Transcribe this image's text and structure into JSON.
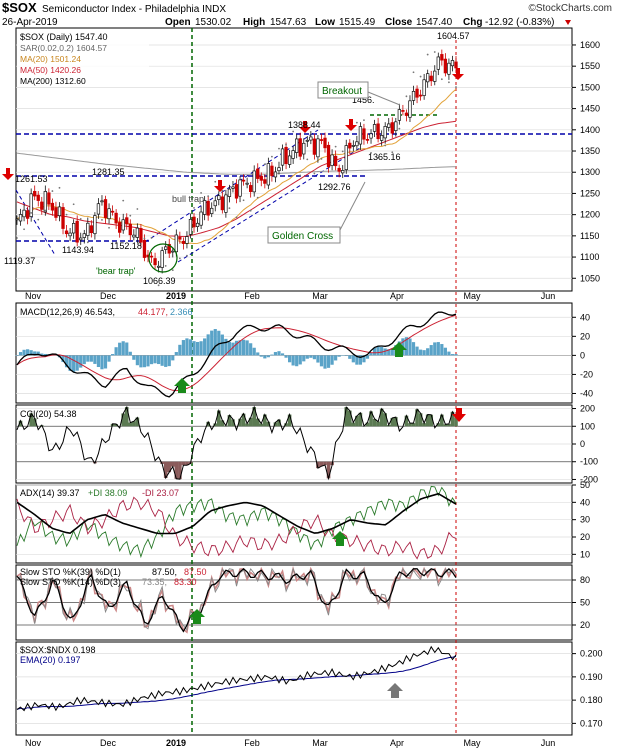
{
  "header": {
    "symbol": "$SOX",
    "name": "Semiconductor Index - Philadelphia INDX",
    "credit": "©StockCharts.com",
    "date": "26-Apr-2019",
    "open_label": "Open",
    "open": "1530.02",
    "high_label": "High",
    "high": "1547.63",
    "low_label": "Low",
    "low": "1515.49",
    "close_label": "Close",
    "close": "1547.40",
    "chg_label": "Chg",
    "chg": "-12.92 (-0.83%)"
  },
  "colors": {
    "up": "#111111",
    "down": "#cc0000",
    "ma20": "#e2a33a",
    "ma50": "#cc2233",
    "ma200": "#000000",
    "sar": "#666666",
    "dashed": "#0000aa",
    "green": "#006600",
    "macd_hist": "#5aa3c8",
    "cci_fill": "#5b7a52",
    "di_plus": "#2a7a2a",
    "di_minus": "#aa2244",
    "ema": "#000088"
  },
  "legend": {
    "price": [
      "$SOX (Daily) 1547.40",
      "SAR(0.02,0.2) 1604.57",
      "MA(20) 1501.24",
      "MA(50) 1420.26",
      "MA(200) 1312.60"
    ],
    "macd": [
      "MACD(12,26,9) 46.543,",
      "44.177,",
      "2.366"
    ],
    "cci": "CCI(20) 54.38",
    "adx": [
      "ADX(14) 39.37",
      "+DI 38.09",
      "-DI 23.07"
    ],
    "sto1": [
      "Slow STO %K(39) %D(1)",
      "87.50,",
      "87.50"
    ],
    "sto2": [
      "Slow STO %K(14) %D(3)",
      "73.35,",
      "83.30"
    ],
    "ratio": [
      "$SOX:$NDX 0.198",
      "EMA(20) 0.197"
    ]
  },
  "annotations": {
    "breakout": "Breakout",
    "bull_trap": "bull trap",
    "bear_trap": "'bear trap'",
    "golden_cross": "Golden Cross",
    "price_labels": [
      "1604.57",
      "1456.",
      "1388.44",
      "1365.16",
      "1292.76",
      "1281.35",
      "1261.53",
      "1119.37",
      "1143.94",
      "1152.18",
      "1066.39"
    ]
  },
  "x_axis": {
    "labels": [
      "Nov",
      "Dec",
      "2019",
      "Feb",
      "Mar",
      "Apr",
      "May",
      "Jun"
    ]
  },
  "chart_data": [
    {
      "type": "line",
      "title": "$SOX Semiconductor Index - Philadelphia INDX (Daily)",
      "ylim": [
        1020,
        1640
      ],
      "yticks": [
        1050,
        1100,
        1150,
        1200,
        1250,
        1300,
        1350,
        1400,
        1450,
        1500,
        1550,
        1600
      ],
      "series": [
        {
          "name": "$SOX (Daily)",
          "x": [
            "Oct 26",
            "Nov 2",
            "Nov 9",
            "Nov 16",
            "Nov 23",
            "Nov 30",
            "Dec 7",
            "Dec 14",
            "Dec 21",
            "Dec 28",
            "Jan 4",
            "Jan 11",
            "Jan 18",
            "Jan 25",
            "Feb 1",
            "Feb 8",
            "Feb 15",
            "Feb 22",
            "Mar 1",
            "Mar 8",
            "Mar 15",
            "Mar 22",
            "Mar 29",
            "Apr 5",
            "Apr 12",
            "Apr 19",
            "Apr 26"
          ],
          "values": [
            1180,
            1240,
            1225,
            1160,
            1148,
            1228,
            1178,
            1160,
            1080,
            1120,
            1150,
            1210,
            1230,
            1265,
            1280,
            1295,
            1340,
            1368,
            1370,
            1300,
            1380,
            1390,
            1400,
            1450,
            1500,
            1560,
            1547
          ]
        },
        {
          "name": "MA(50)",
          "values": [
            1230,
            1215,
            1200,
            1195,
            1185,
            1180,
            1175,
            1170,
            1160,
            1150,
            1148,
            1158,
            1170,
            1190,
            1215,
            1240,
            1265,
            1290,
            1315,
            1330,
            1345,
            1360,
            1375,
            1390,
            1405,
            1415,
            1420
          ]
        },
        {
          "name": "MA(200)",
          "values": [
            1345,
            1340,
            1335,
            1330,
            1325,
            1320,
            1316,
            1312,
            1308,
            1304,
            1300,
            1298,
            1296,
            1295,
            1295,
            1296,
            1298,
            1300,
            1302,
            1303,
            1304,
            1305,
            1306,
            1308,
            1310,
            1312,
            1313
          ]
        }
      ],
      "lines": {
        "support_1": 1393,
        "support_2": 1298,
        "support_3": 1140,
        "breakout_level": 1440
      }
    },
    {
      "type": "line",
      "title": "MACD(12,26,9)",
      "ylim": [
        -50,
        55
      ],
      "yticks": [
        40,
        20,
        0,
        -20,
        -40
      ]
    },
    {
      "type": "line",
      "title": "CCI(20)",
      "ylim": [
        -220,
        220
      ],
      "yticks": [
        200,
        100,
        0,
        -100,
        -200
      ]
    },
    {
      "type": "line",
      "title": "ADX(14)",
      "ylim": [
        5,
        50
      ],
      "yticks": [
        50,
        40,
        30,
        20,
        10
      ]
    },
    {
      "type": "line",
      "title": "Slow STO",
      "ylim": [
        0,
        100
      ],
      "yticks": [
        80,
        50,
        20
      ]
    },
    {
      "type": "line",
      "title": "$SOX:$NDX",
      "ylim": [
        0.165,
        0.205
      ],
      "yticks": [
        0.2,
        0.19,
        0.18,
        0.17
      ]
    }
  ]
}
